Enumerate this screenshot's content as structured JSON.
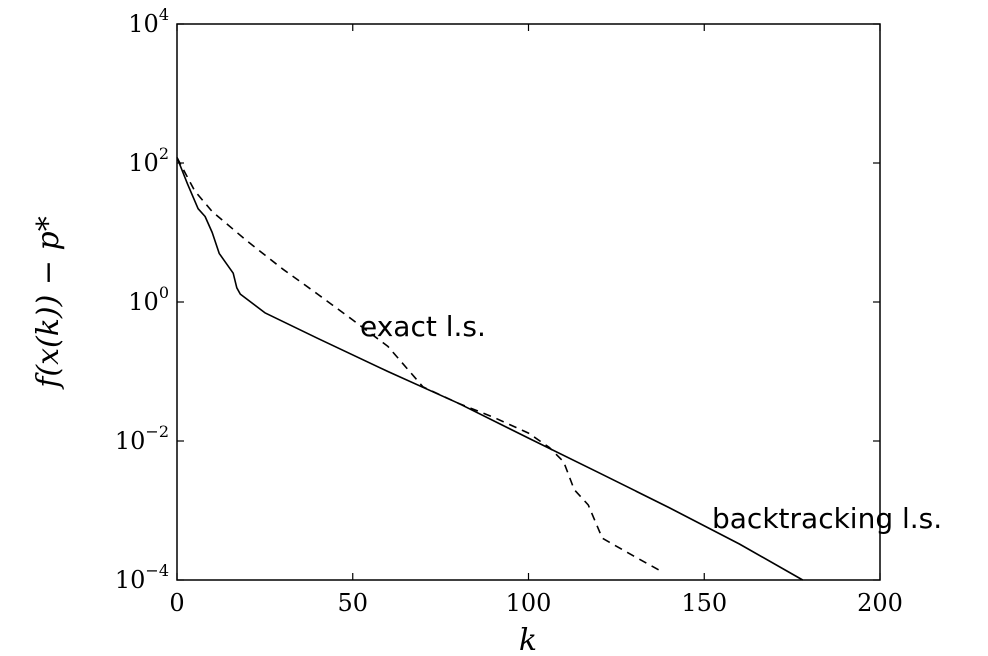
{
  "chart_data": {
    "type": "line",
    "xlabel": "k",
    "ylabel": "f(x(k)) − p*",
    "xlim": [
      0,
      200
    ],
    "ylim": [
      0.0001,
      10000
    ],
    "yscale": "log",
    "grid": false,
    "xticks": [
      "0",
      "50",
      "100",
      "150",
      "200"
    ],
    "yticks": [
      {
        "base": "10",
        "exp": "4"
      },
      {
        "base": "10",
        "exp": "2"
      },
      {
        "base": "10",
        "exp": "0"
      },
      {
        "base": "10",
        "exp": "−2"
      },
      {
        "base": "10",
        "exp": "−4"
      }
    ],
    "annotations": [
      "exact l.s.",
      "backtracking l.s."
    ],
    "series": [
      {
        "name": "backtracking l.s.",
        "style": "solid",
        "x": [
          0,
          3,
          6,
          8,
          10,
          12,
          14,
          16,
          17,
          18,
          25,
          40,
          60,
          80,
          100,
          120,
          140,
          160,
          178
        ],
        "y": [
          120,
          50,
          22,
          17,
          10,
          5,
          3.6,
          2.6,
          1.6,
          1.3,
          0.7,
          0.3,
          0.1,
          0.035,
          0.011,
          0.0035,
          0.0011,
          0.00033,
          0.0001
        ]
      },
      {
        "name": "exact l.s.",
        "style": "dashed",
        "x": [
          0,
          5,
          10,
          20,
          30,
          40,
          50,
          60,
          70,
          80,
          90,
          100,
          106,
          110,
          113,
          117,
          121,
          130,
          137
        ],
        "y": [
          120,
          40,
          20,
          7.5,
          3,
          1.3,
          0.55,
          0.23,
          0.06,
          0.035,
          0.022,
          0.013,
          0.008,
          0.005,
          0.002,
          0.0012,
          0.0004,
          0.00022,
          0.00014
        ]
      }
    ]
  }
}
